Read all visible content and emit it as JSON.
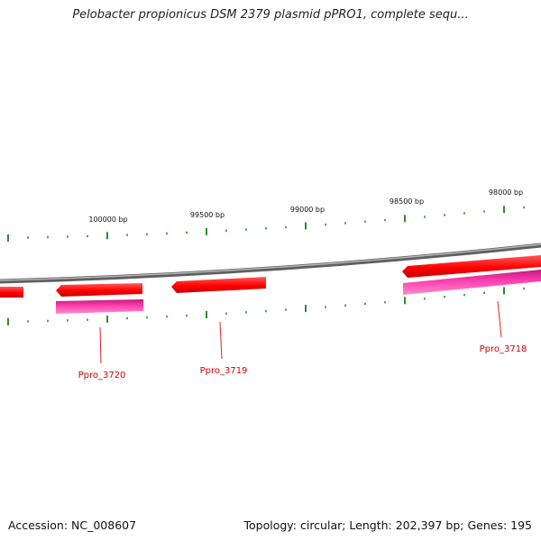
{
  "title": "Pelobacter propionicus DSM 2379 plasmid pPRO1, complete sequ...",
  "footer": {
    "accession": "Accession: NC_008607",
    "summary": "Topology: circular; Length: 202,397 bp; Genes: 195"
  },
  "colors": {
    "backbone": "#8a8a8a",
    "forward_gene": "#ff1a1a",
    "reverse_gene": "#ff3fb0",
    "tick": "#2e8b2e",
    "label": "#d40000"
  },
  "scale_labels": [
    "100000 bp",
    "99500 bp",
    "99000 bp",
    "98500 bp",
    "98000 bp"
  ],
  "genes": [
    {
      "label": "",
      "strand": "forward"
    },
    {
      "label": "",
      "strand": "forward"
    },
    {
      "label": "",
      "strand": "forward"
    },
    {
      "label": "",
      "strand": "forward"
    },
    {
      "label": "",
      "strand": "forward"
    },
    {
      "label": "",
      "strand": "reverse"
    },
    {
      "label": "",
      "strand": "reverse"
    },
    {
      "label": "Ppro_3720",
      "strand": "label"
    },
    {
      "label": "Ppro_3719",
      "strand": "label"
    },
    {
      "label": "Ppro_3718",
      "strand": "label"
    }
  ]
}
